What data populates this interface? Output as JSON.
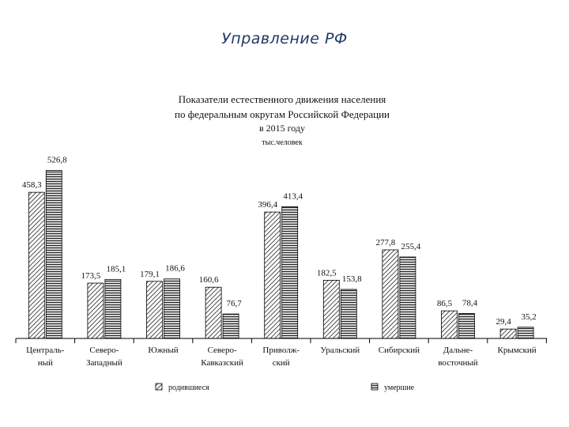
{
  "slide": {
    "title": "Управление РФ"
  },
  "chart_data": {
    "type": "bar",
    "title": "Показатели естественного движения населения",
    "subtitle": "по федеральным округам Российской Федерации",
    "period": "в 2015 году",
    "units": "тыс.человек",
    "categories": [
      [
        "Централь-",
        "ный"
      ],
      [
        "Северо-",
        "Западный"
      ],
      [
        "Южный"
      ],
      [
        "Северо-",
        "Кавказский"
      ],
      [
        "Приволж-",
        "ский"
      ],
      [
        "Уральский"
      ],
      [
        "Сибирский"
      ],
      [
        "Дальне-",
        "восточный"
      ],
      [
        "Крымский"
      ]
    ],
    "series": [
      {
        "name": "родившиеся",
        "values": [
          458.3,
          173.5,
          179.1,
          160.6,
          396.4,
          182.5,
          277.8,
          86.5,
          29.4
        ],
        "labels": [
          "458,3",
          "173,5",
          "179,1",
          "160,6",
          "396,4",
          "182,5",
          "277,8",
          "86,5",
          "29,4"
        ]
      },
      {
        "name": "умершие",
        "values": [
          526.8,
          185.1,
          186.6,
          76.7,
          413.4,
          153.8,
          255.4,
          78.4,
          35.2
        ],
        "labels": [
          "526,8",
          "185,1",
          "186,6",
          "76,7",
          "413,4",
          "153,8",
          "255,4",
          "78,4",
          "35,2"
        ]
      }
    ],
    "ylim": [
      0,
      560
    ],
    "grid": false,
    "legend": "bottom"
  }
}
